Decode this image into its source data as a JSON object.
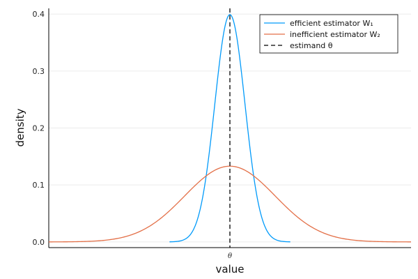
{
  "chart_data": {
    "type": "line",
    "xlabel": "value",
    "ylabel": "density",
    "x_tick_labels": [
      "θ"
    ],
    "y_ticks": [
      0.0,
      0.1,
      0.2,
      0.3,
      0.4
    ],
    "y_tick_labels": [
      "0.0",
      "0.1",
      "0.2",
      "0.3",
      "0.4"
    ],
    "xlim": [
      -3.0,
      3.0
    ],
    "ylim": [
      -0.01,
      0.41
    ],
    "grid": true,
    "legend_position": "top-right",
    "series": [
      {
        "name": "efficient estimator W₁",
        "color": "#009AFA",
        "sd": 1.0,
        "x": [
          -1.0,
          -0.8,
          -0.6,
          -0.4,
          -0.2,
          0.0,
          0.2,
          0.4,
          0.6,
          0.8,
          1.0
        ],
        "values": [
          0.001,
          0.01,
          0.05,
          0.15,
          0.32,
          0.399,
          0.32,
          0.15,
          0.05,
          0.01,
          0.001
        ]
      },
      {
        "name": "inefficient estimator W₂",
        "color": "#E36F47",
        "sd": 3.0,
        "x": [
          -3.0,
          -2.4,
          -1.8,
          -1.2,
          -0.6,
          0.0,
          0.6,
          1.2,
          1.8,
          2.4,
          3.0
        ],
        "values": [
          0.0,
          0.002,
          0.015,
          0.055,
          0.108,
          0.133,
          0.108,
          0.055,
          0.015,
          0.002,
          0.0
        ]
      }
    ],
    "vline": {
      "name": "estimand θ",
      "x": 0.0,
      "style": "dashed",
      "color": "#000000"
    }
  }
}
